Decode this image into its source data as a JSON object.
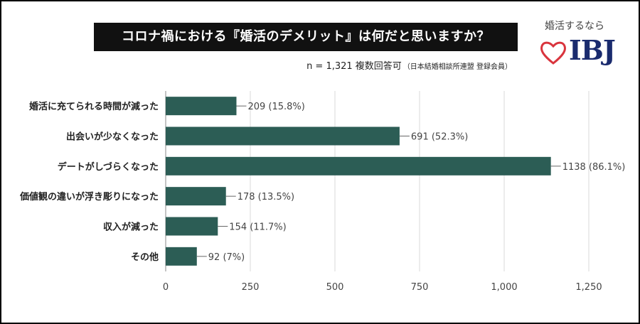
{
  "header": {
    "title": "コロナ禍における『婚活のデメリット』は何だと思いますか？",
    "sample": "n = 1,321 複数回答可",
    "note": "（日本結婚相談所連盟 登録会員）"
  },
  "logo": {
    "tagline": "婚活するなら",
    "wordmark": "IBJ",
    "heart_color": "#d9343d",
    "word_color": "#1a2b6e"
  },
  "chart_data": {
    "type": "bar",
    "orientation": "horizontal",
    "categories": [
      "婚活に充てられる時間が減った",
      "出会いが少なくなった",
      "デートがしづらくなった",
      "価値観の違いが浮き彫りになった",
      "収入が減った",
      "その他"
    ],
    "values": [
      209,
      691,
      1138,
      178,
      154,
      92
    ],
    "value_labels": [
      "209 (15.8%)",
      "691 (52.3%)",
      "1138 (86.1%)",
      "178 (13.5%)",
      "154 (11.7%)",
      "92 (7%)"
    ],
    "xlim": [
      0,
      1250
    ],
    "xticks": [
      0,
      250,
      500,
      750,
      1000,
      1250
    ],
    "xtick_labels": [
      "0",
      "250",
      "500",
      "750",
      "1,000",
      "1,250"
    ],
    "grid": true,
    "bar_color": "#2c5d55"
  }
}
